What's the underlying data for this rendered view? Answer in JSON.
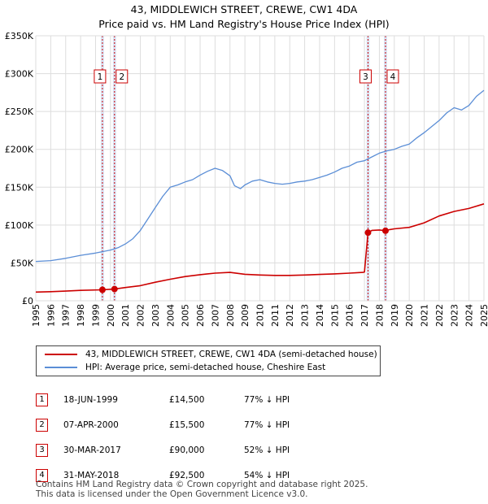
{
  "chart_data": {
    "type": "line",
    "title": "43, MIDDLEWICH STREET, CREWE, CW1 4DA",
    "subtitle": "Price paid vs. HM Land Registry's House Price Index (HPI)",
    "xlim": [
      1995,
      2025
    ],
    "ylim": [
      0,
      350000
    ],
    "x_ticks": [
      "1995",
      "1996",
      "1997",
      "1998",
      "1999",
      "2000",
      "2001",
      "2002",
      "2003",
      "2004",
      "2005",
      "2006",
      "2007",
      "2008",
      "2009",
      "2010",
      "2011",
      "2012",
      "2013",
      "2014",
      "2015",
      "2016",
      "2017",
      "2018",
      "2019",
      "2020",
      "2021",
      "2022",
      "2023",
      "2024",
      "2025"
    ],
    "y_ticks": [
      {
        "value": 0,
        "label": "£0"
      },
      {
        "value": 50000,
        "label": "£50K"
      },
      {
        "value": 100000,
        "label": "£100K"
      },
      {
        "value": 150000,
        "label": "£150K"
      },
      {
        "value": 200000,
        "label": "£200K"
      },
      {
        "value": 250000,
        "label": "£250K"
      },
      {
        "value": 300000,
        "label": "£300K"
      },
      {
        "value": 350000,
        "label": "£350K"
      }
    ],
    "series": [
      {
        "name": "HPI: Average price, semi-detached house, Cheshire East",
        "color": "#5b8ed6",
        "x": [
          1995,
          1996,
          1997,
          1998,
          1999,
          2000,
          2000.5,
          2001,
          2001.5,
          2002,
          2002.5,
          2003,
          2003.5,
          2004,
          2004.5,
          2005,
          2005.5,
          2006,
          2006.5,
          2007,
          2007.5,
          2008,
          2008.3,
          2008.7,
          2009,
          2009.5,
          2010,
          2010.5,
          2011,
          2011.5,
          2012,
          2012.5,
          2013,
          2013.5,
          2014,
          2014.5,
          2015,
          2015.5,
          2016,
          2016.5,
          2017,
          2017.5,
          2018,
          2018.5,
          2019,
          2019.5,
          2020,
          2020.5,
          2021,
          2021.5,
          2022,
          2022.5,
          2023,
          2023.5,
          2024,
          2024.5,
          2025
        ],
        "values": [
          52000,
          53000,
          56000,
          60000,
          63000,
          67000,
          70000,
          75000,
          82000,
          93000,
          108000,
          123000,
          138000,
          150000,
          153000,
          157000,
          160000,
          166000,
          171000,
          175000,
          172000,
          165000,
          152000,
          148000,
          153000,
          158000,
          160000,
          157000,
          155000,
          154000,
          155000,
          157000,
          158000,
          160000,
          163000,
          166000,
          170000,
          175000,
          178000,
          183000,
          185000,
          190000,
          195000,
          198000,
          200000,
          204000,
          207000,
          215000,
          222000,
          230000,
          238000,
          248000,
          255000,
          252000,
          258000,
          270000,
          278000
        ]
      },
      {
        "name": "43, MIDDLEWICH STREET, CREWE, CW1 4DA (semi-detached house)",
        "color": "#cc0000",
        "x": [
          1995,
          1996,
          1997,
          1998,
          1999.46,
          2000.27,
          2001,
          2002,
          2003,
          2004,
          2005,
          2006,
          2007,
          2008,
          2009,
          2010,
          2011,
          2012,
          2013,
          2014,
          2015,
          2016,
          2016.9,
          2017.0,
          2017.24,
          2017.5,
          2018,
          2018.41,
          2018.7,
          2019,
          2020,
          2021,
          2022,
          2023,
          2024,
          2025
        ],
        "values": [
          11500,
          12000,
          12800,
          13700,
          14500,
          15500,
          17500,
          20000,
          24500,
          28500,
          32000,
          34500,
          36500,
          37500,
          35000,
          34000,
          33500,
          33500,
          34000,
          34800,
          35500,
          36500,
          37500,
          38000,
          90000,
          93000,
          93500,
          92500,
          94000,
          95000,
          97000,
          103000,
          112000,
          118000,
          122000,
          128000
        ]
      }
    ],
    "sales": [
      {
        "num": "1",
        "x": 1999.46,
        "price": 14500
      },
      {
        "num": "2",
        "x": 2000.27,
        "price": 15500
      },
      {
        "num": "3",
        "x": 2017.24,
        "price": 90000
      },
      {
        "num": "4",
        "x": 2018.41,
        "price": 92500
      }
    ]
  },
  "legend": {
    "property_label": "43, MIDDLEWICH STREET, CREWE, CW1 4DA (semi-detached house)",
    "hpi_label": "HPI: Average price, semi-detached house, Cheshire East"
  },
  "table": [
    {
      "num": "1",
      "date": "18-JUN-1999",
      "price": "£14,500",
      "hpi": "77% ↓ HPI"
    },
    {
      "num": "2",
      "date": "07-APR-2000",
      "price": "£15,500",
      "hpi": "77% ↓ HPI"
    },
    {
      "num": "3",
      "date": "30-MAR-2017",
      "price": "£90,000",
      "hpi": "52% ↓ HPI"
    },
    {
      "num": "4",
      "date": "31-MAY-2018",
      "price": "£92,500",
      "hpi": "54% ↓ HPI"
    }
  ],
  "footer": {
    "line1": "Contains HM Land Registry data © Crown copyright and database right 2025.",
    "line2": "This data is licensed under the Open Government Licence v3.0."
  },
  "colors": {
    "property": "#cc0000",
    "hpi": "#5b8ed6",
    "grid": "#dddddd",
    "sale_band": "#dce6f7"
  }
}
